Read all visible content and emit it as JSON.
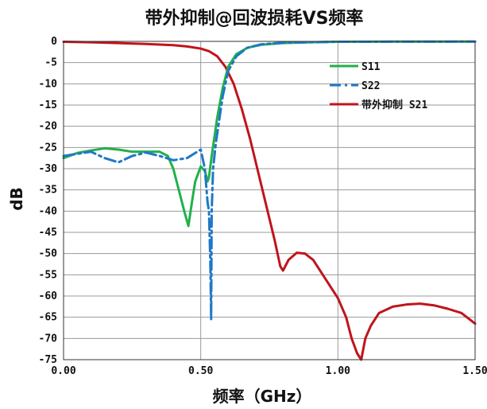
{
  "chart_data": {
    "type": "line",
    "title": "带外抑制@回波损耗VS频率",
    "xlabel": "频率（GHz）",
    "ylabel": "dB",
    "xlim": [
      0,
      1.5
    ],
    "ylim": [
      -75,
      0
    ],
    "xticks": [
      0,
      0.5,
      1.0,
      1.5
    ],
    "xtick_labels": [
      "0.00",
      "0.50",
      "1.00",
      "1.50"
    ],
    "yticks": [
      0,
      -5,
      -10,
      -15,
      -20,
      -25,
      -30,
      -35,
      -40,
      -45,
      -50,
      -55,
      -60,
      -65,
      -70,
      -75
    ],
    "ytick_labels": [
      "0",
      "-5",
      "-10",
      "-15",
      "-20",
      "-25",
      "-30",
      "-35",
      "-40",
      "-45",
      "-50",
      "-55",
      "-60",
      "-65",
      "-70",
      "-75"
    ],
    "grid": true,
    "legend_position": "top-right",
    "series": [
      {
        "name": "S11",
        "color": "#22b04b",
        "style": "solid",
        "points": [
          [
            0,
            -27.5
          ],
          [
            0.05,
            -26.3
          ],
          [
            0.1,
            -25.7
          ],
          [
            0.15,
            -25.2
          ],
          [
            0.2,
            -25.5
          ],
          [
            0.25,
            -26.0
          ],
          [
            0.3,
            -26.0
          ],
          [
            0.35,
            -26.0
          ],
          [
            0.38,
            -27.0
          ],
          [
            0.4,
            -30.0
          ],
          [
            0.42,
            -35.0
          ],
          [
            0.44,
            -40.0
          ],
          [
            0.455,
            -43.5
          ],
          [
            0.47,
            -37.0
          ],
          [
            0.48,
            -33.0
          ],
          [
            0.5,
            -29.5
          ],
          [
            0.515,
            -30.5
          ],
          [
            0.525,
            -33.0
          ],
          [
            0.53,
            -32.0
          ],
          [
            0.54,
            -27.0
          ],
          [
            0.56,
            -18.0
          ],
          [
            0.58,
            -11.0
          ],
          [
            0.6,
            -6.0
          ],
          [
            0.63,
            -3.0
          ],
          [
            0.67,
            -1.5
          ],
          [
            0.72,
            -0.8
          ],
          [
            0.8,
            -0.4
          ],
          [
            0.9,
            -0.2
          ],
          [
            1.0,
            -0.1
          ],
          [
            1.2,
            -0.05
          ],
          [
            1.5,
            -0.05
          ]
        ]
      },
      {
        "name": "S22",
        "color": "#1f78c8",
        "style": "dashdot",
        "points": [
          [
            0,
            -27.0
          ],
          [
            0.05,
            -26.5
          ],
          [
            0.1,
            -26.0
          ],
          [
            0.15,
            -27.5
          ],
          [
            0.2,
            -28.5
          ],
          [
            0.25,
            -27.0
          ],
          [
            0.3,
            -26.2
          ],
          [
            0.35,
            -27.0
          ],
          [
            0.4,
            -28.0
          ],
          [
            0.45,
            -27.5
          ],
          [
            0.5,
            -25.5
          ],
          [
            0.515,
            -30.0
          ],
          [
            0.525,
            -38.0
          ],
          [
            0.53,
            -40.0
          ],
          [
            0.535,
            -52.0
          ],
          [
            0.538,
            -65.5
          ],
          [
            0.54,
            -40.0
          ],
          [
            0.545,
            -30.0
          ],
          [
            0.555,
            -24.0
          ],
          [
            0.58,
            -13.0
          ],
          [
            0.6,
            -7.0
          ],
          [
            0.63,
            -3.5
          ],
          [
            0.67,
            -1.5
          ],
          [
            0.72,
            -0.7
          ],
          [
            0.8,
            -0.3
          ],
          [
            1.0,
            -0.1
          ],
          [
            1.5,
            -0.05
          ]
        ]
      },
      {
        "name": "带外抑制 S21",
        "color": "#c0141c",
        "style": "solid",
        "points": [
          [
            0,
            -0.1
          ],
          [
            0.1,
            -0.2
          ],
          [
            0.2,
            -0.4
          ],
          [
            0.3,
            -0.6
          ],
          [
            0.4,
            -0.9
          ],
          [
            0.45,
            -1.2
          ],
          [
            0.5,
            -1.7
          ],
          [
            0.53,
            -2.3
          ],
          [
            0.56,
            -3.5
          ],
          [
            0.59,
            -6.0
          ],
          [
            0.62,
            -10.0
          ],
          [
            0.65,
            -16.0
          ],
          [
            0.68,
            -23.0
          ],
          [
            0.71,
            -31.0
          ],
          [
            0.74,
            -39.0
          ],
          [
            0.77,
            -47.0
          ],
          [
            0.79,
            -53.0
          ],
          [
            0.8,
            -54.0
          ],
          [
            0.82,
            -51.5
          ],
          [
            0.85,
            -49.8
          ],
          [
            0.88,
            -50.0
          ],
          [
            0.91,
            -51.5
          ],
          [
            0.94,
            -54.5
          ],
          [
            0.97,
            -57.5
          ],
          [
            1.0,
            -60.5
          ],
          [
            1.03,
            -65.0
          ],
          [
            1.05,
            -70.0
          ],
          [
            1.07,
            -73.5
          ],
          [
            1.085,
            -75.0
          ],
          [
            1.1,
            -70.0
          ],
          [
            1.12,
            -67.0
          ],
          [
            1.15,
            -64.0
          ],
          [
            1.2,
            -62.5
          ],
          [
            1.25,
            -62.0
          ],
          [
            1.3,
            -61.8
          ],
          [
            1.35,
            -62.2
          ],
          [
            1.4,
            -63.0
          ],
          [
            1.45,
            -64.0
          ],
          [
            1.48,
            -65.5
          ],
          [
            1.5,
            -66.5
          ]
        ]
      }
    ]
  }
}
